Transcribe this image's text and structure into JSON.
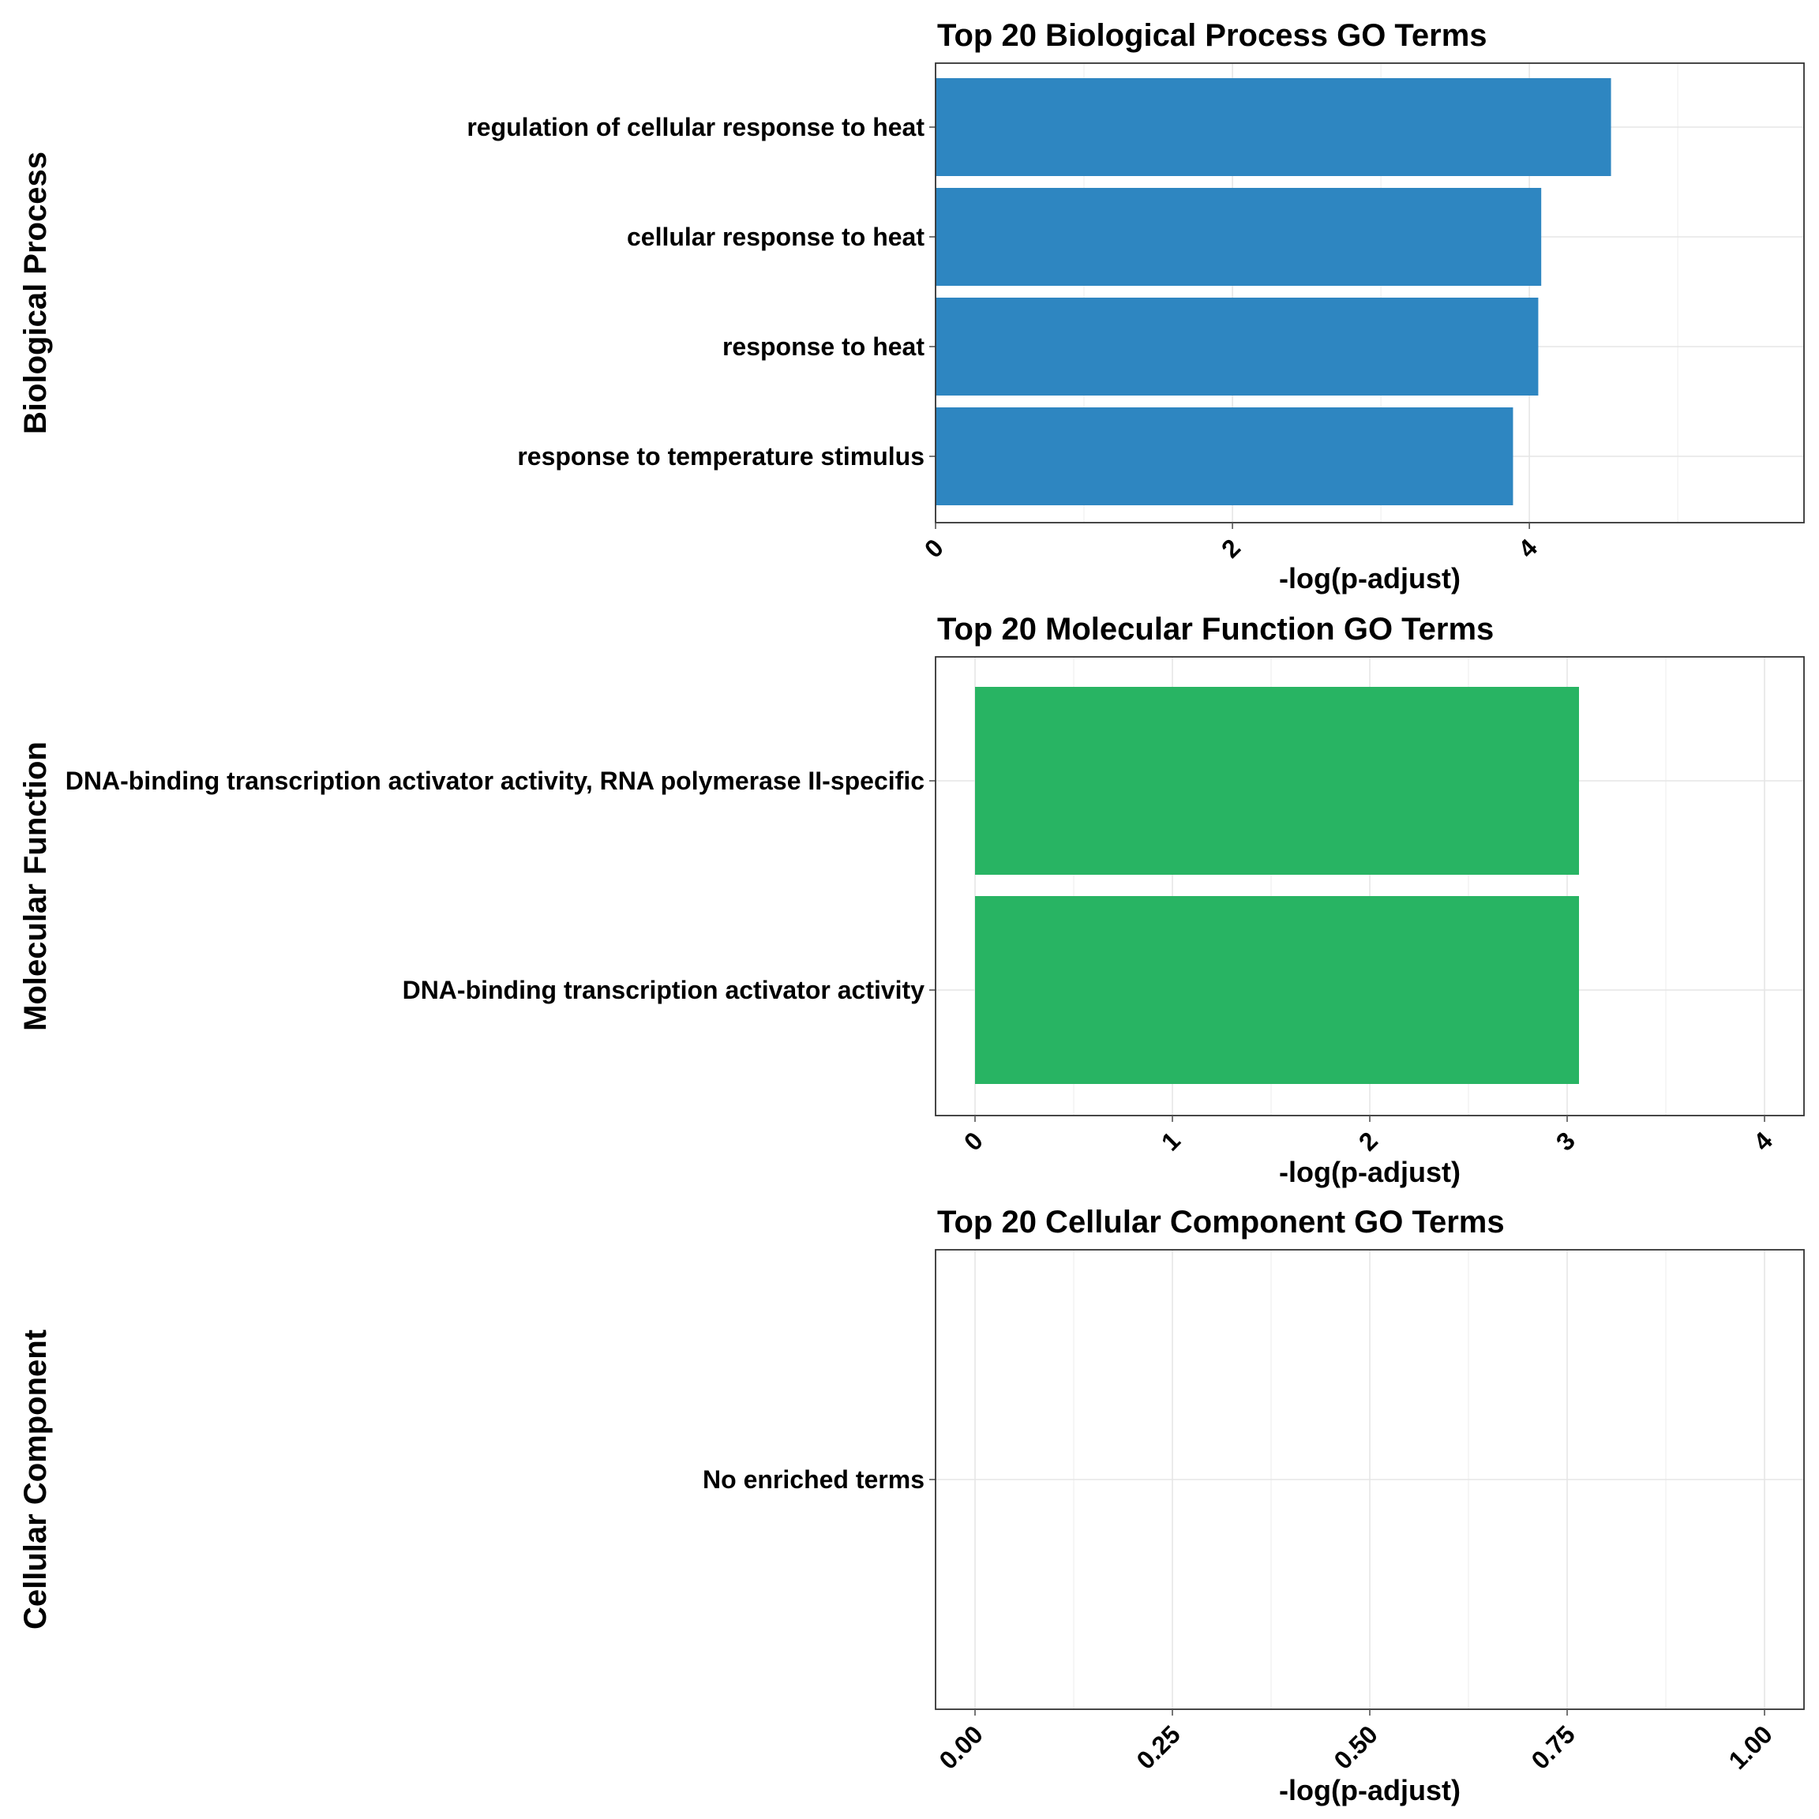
{
  "chart_data": [
    {
      "type": "bar",
      "orientation": "horizontal",
      "title": "Top 20 Biological Process GO Terms",
      "facet_label": "Biological Process",
      "xlabel": "-log(p-adjust)",
      "xlim": [
        0,
        5.85
      ],
      "xticks": [
        0,
        2,
        4
      ],
      "tick_labels": [
        "0",
        "2",
        "4"
      ],
      "color": "#2e86c1",
      "categories": [
        "regulation of cellular response to heat",
        "cellular response to heat",
        "response to heat",
        "response to temperature stimulus"
      ],
      "values": [
        4.55,
        4.08,
        4.06,
        3.89
      ]
    },
    {
      "type": "bar",
      "orientation": "horizontal",
      "title": "Top 20 Molecular Function GO Terms",
      "facet_label": "Molecular Function",
      "xlabel": "-log(p-adjust)",
      "xlim": [
        -0.2,
        4.2
      ],
      "xticks": [
        0,
        1,
        2,
        3,
        4
      ],
      "tick_labels": [
        "0",
        "1",
        "2",
        "3",
        "4"
      ],
      "color": "#28b463",
      "categories": [
        "DNA-binding transcription activator activity, RNA polymerase II-specific",
        "DNA-binding transcription activator activity"
      ],
      "values": [
        3.06,
        3.06
      ]
    },
    {
      "type": "bar",
      "orientation": "horizontal",
      "title": "Top 20 Cellular Component GO Terms",
      "facet_label": "Cellular Component",
      "xlabel": "-log(p-adjust)",
      "xlim": [
        -0.05,
        1.05
      ],
      "xticks": [
        0,
        0.25,
        0.5,
        0.75,
        1
      ],
      "tick_labels": [
        "0.00",
        "0.25",
        "0.50",
        "0.75",
        "1.00"
      ],
      "color": "#cccccc",
      "categories": [
        "No enriched terms"
      ],
      "values": [
        0
      ]
    }
  ]
}
